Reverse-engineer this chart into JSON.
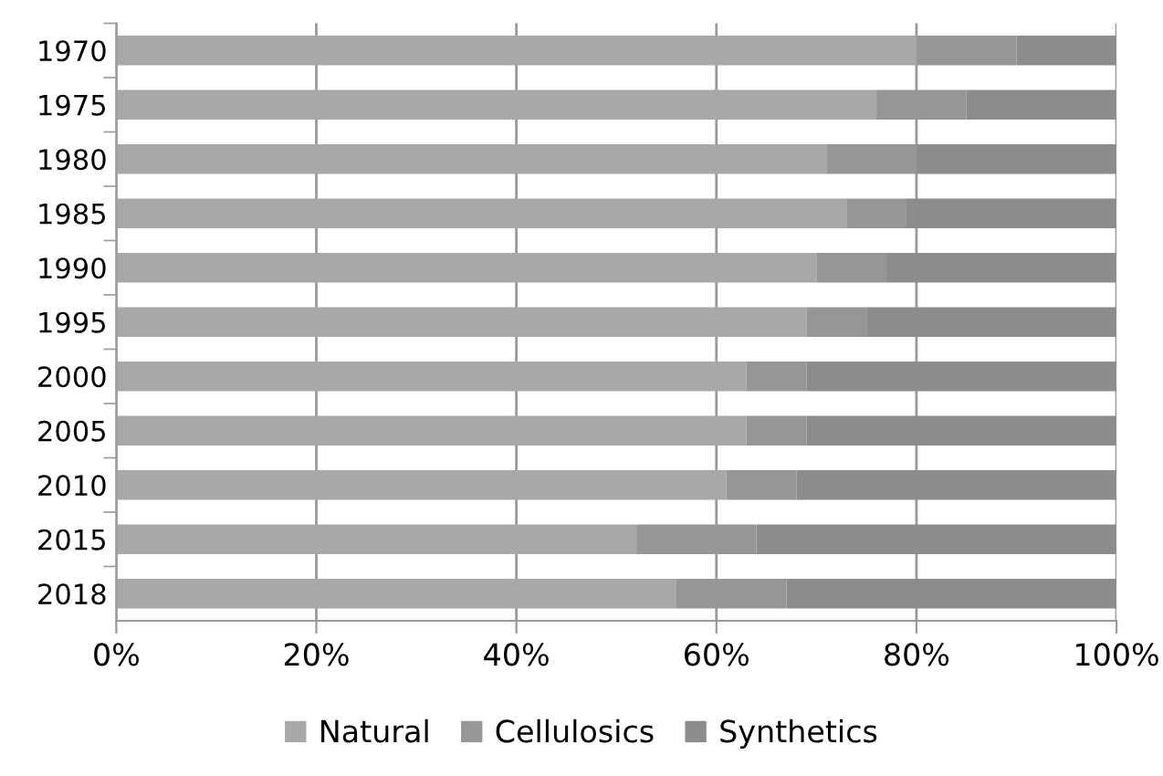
{
  "chart_data": {
    "type": "bar",
    "orientation": "horizontal",
    "stacked": true,
    "categories": [
      "1970",
      "1975",
      "1980",
      "1985",
      "1990",
      "1995",
      "2000",
      "2005",
      "2010",
      "2015",
      "2018"
    ],
    "series": [
      {
        "name": "Natural",
        "color": "#a8a8a8",
        "values": [
          80,
          76,
          71,
          73,
          70,
          69,
          63,
          63,
          61,
          52,
          56
        ]
      },
      {
        "name": "Cellulosics",
        "color": "#969696",
        "values": [
          10,
          9,
          9,
          6,
          7,
          6,
          6,
          6,
          7,
          12,
          11
        ]
      },
      {
        "name": "Synthetics",
        "color": "#8c8c8c",
        "values": [
          10,
          15,
          20,
          21,
          23,
          25,
          31,
          31,
          32,
          36,
          33
        ]
      }
    ],
    "xlim": [
      0,
      100
    ],
    "xticks": [
      {
        "value": 0,
        "label": "0%"
      },
      {
        "value": 20,
        "label": "20%"
      },
      {
        "value": 40,
        "label": "40%"
      },
      {
        "value": 60,
        "label": "60%"
      },
      {
        "value": 80,
        "label": "80%"
      },
      {
        "value": 100,
        "label": "100%"
      }
    ],
    "grid": "x",
    "legend": "bottom"
  }
}
